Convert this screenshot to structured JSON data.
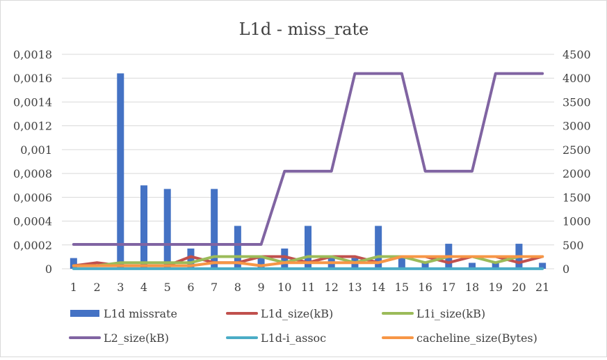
{
  "chart_data": {
    "type": "bar",
    "title": "L1d - miss_rate",
    "categories": [
      "1",
      "2",
      "3",
      "4",
      "5",
      "6",
      "7",
      "8",
      "9",
      "10",
      "11",
      "12",
      "13",
      "14",
      "15",
      "16",
      "17",
      "18",
      "19",
      "20",
      "21"
    ],
    "y_left": {
      "range": [
        0,
        0.0018
      ],
      "ticks": [
        "0",
        "0,0002",
        "0,0004",
        "0,0006",
        "0,0008",
        "0,001",
        "0,0012",
        "0,0014",
        "0,0016",
        "0,0018"
      ]
    },
    "y_right": {
      "range": [
        0,
        4500
      ],
      "ticks": [
        "0",
        "500",
        "1000",
        "1500",
        "2000",
        "2500",
        "3000",
        "3500",
        "4000",
        "4500"
      ]
    },
    "grid": true,
    "legend_position": "bottom",
    "series": [
      {
        "name": "L1d missrate",
        "kind": "bar",
        "axis": "left",
        "color": "#4472C4",
        "values": [
          9e-05,
          0,
          0.00164,
          0.0007,
          0.00067,
          0.00017,
          0.00067,
          0.00036,
          9e-05,
          0.00017,
          0.00036,
          9e-05,
          9e-05,
          0.00036,
          9e-05,
          5e-05,
          0.00021,
          5e-05,
          5e-05,
          0.00021,
          5e-05
        ]
      },
      {
        "name": "L1d_size(kB)",
        "kind": "line",
        "axis": "right",
        "color": "#C0504D",
        "values": [
          64,
          128,
          64,
          64,
          64,
          256,
          128,
          128,
          256,
          256,
          128,
          256,
          256,
          128,
          256,
          256,
          128,
          256,
          256,
          128,
          256
        ]
      },
      {
        "name": "L1i_size(kB)",
        "kind": "line",
        "axis": "right",
        "color": "#9BBB59",
        "values": [
          64,
          64,
          128,
          128,
          128,
          128,
          256,
          256,
          256,
          128,
          256,
          256,
          128,
          256,
          256,
          128,
          256,
          256,
          128,
          256,
          256
        ]
      },
      {
        "name": "L2_size(kB)",
        "kind": "line",
        "axis": "right",
        "color": "#8064A2",
        "values": [
          512,
          512,
          512,
          512,
          512,
          512,
          512,
          512,
          512,
          2048,
          2048,
          2048,
          4096,
          4096,
          4096,
          2048,
          2048,
          2048,
          4096,
          4096,
          4096
        ]
      },
      {
        "name": "L1d-i_assoc",
        "kind": "line",
        "axis": "right",
        "color": "#4BACC6",
        "values": [
          2,
          2,
          2,
          2,
          2,
          2,
          2,
          2,
          2,
          2,
          2,
          2,
          2,
          2,
          2,
          2,
          2,
          2,
          2,
          2,
          2
        ]
      },
      {
        "name": "cacheline_size(Bytes)",
        "kind": "line",
        "axis": "right",
        "color": "#F79646",
        "values": [
          64,
          64,
          64,
          64,
          64,
          64,
          128,
          128,
          64,
          128,
          128,
          128,
          128,
          128,
          256,
          256,
          256,
          256,
          256,
          256,
          256
        ]
      }
    ]
  }
}
